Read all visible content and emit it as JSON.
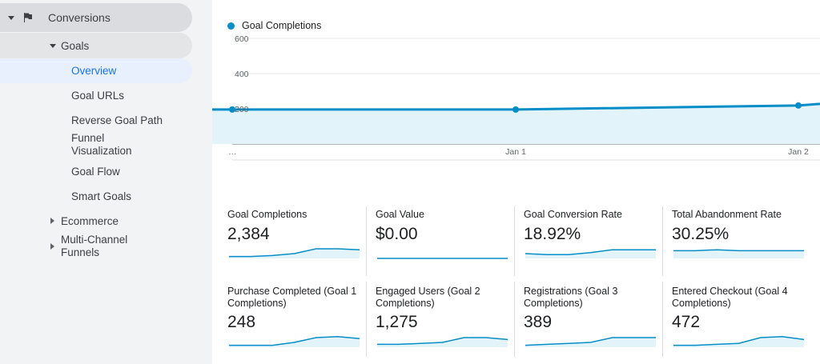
{
  "sidebar": {
    "conversions": "Conversions",
    "goals": "Goals",
    "items": [
      {
        "label": "Overview"
      },
      {
        "label": "Goal URLs"
      },
      {
        "label": "Reverse Goal Path"
      },
      {
        "label": "Funnel Visualization"
      },
      {
        "label": "Goal Flow"
      },
      {
        "label": "Smart Goals"
      }
    ],
    "ecommerce": "Ecommerce",
    "multichannel": "Multi-Channel Funnels"
  },
  "chart": {
    "legend": "Goal Completions",
    "chart_data": {
      "type": "line",
      "x": [
        "…",
        "Jan 1",
        "Jan 2"
      ],
      "y_ticks": [
        "600",
        "400",
        "200"
      ],
      "ylim": [
        0,
        600
      ],
      "series": [
        {
          "name": "Goal Completions",
          "values": [
            196,
            196,
            219
          ]
        }
      ],
      "grid": true
    }
  },
  "colors": {
    "accent": "#058dc7",
    "fill": "#e3f3fa"
  },
  "metrics_row1": [
    {
      "title": "Goal Completions",
      "value": "2,384",
      "spark": [
        2,
        2,
        3,
        5,
        10,
        10,
        9
      ]
    },
    {
      "title": "Goal Value",
      "value": "$0.00",
      "spark": [
        0,
        0,
        0,
        0,
        0,
        0,
        0
      ]
    },
    {
      "title": "Goal Conversion Rate",
      "value": "18.92%",
      "spark": [
        5,
        4,
        4,
        6,
        9,
        9,
        9
      ]
    },
    {
      "title": "Total Abandonment Rate",
      "value": "30.25%",
      "spark": [
        8,
        8,
        9,
        8,
        8,
        8,
        8
      ]
    }
  ],
  "metrics_row2": [
    {
      "title": "Purchase Completed (Goal 1 Completions)",
      "value": "248",
      "spark": [
        2,
        2,
        2,
        5,
        10,
        11,
        9
      ]
    },
    {
      "title": "Engaged Users (Goal 2 Completions)",
      "value": "1,275",
      "spark": [
        3,
        3,
        4,
        5,
        10,
        10,
        8
      ]
    },
    {
      "title": "Registrations (Goal 3 Completions)",
      "value": "389",
      "spark": [
        2,
        3,
        4,
        5,
        10,
        10,
        10
      ]
    },
    {
      "title": "Entered Checkout (Goal 4 Completions)",
      "value": "472",
      "spark": [
        2,
        2,
        3,
        4,
        10,
        11,
        8
      ]
    }
  ]
}
